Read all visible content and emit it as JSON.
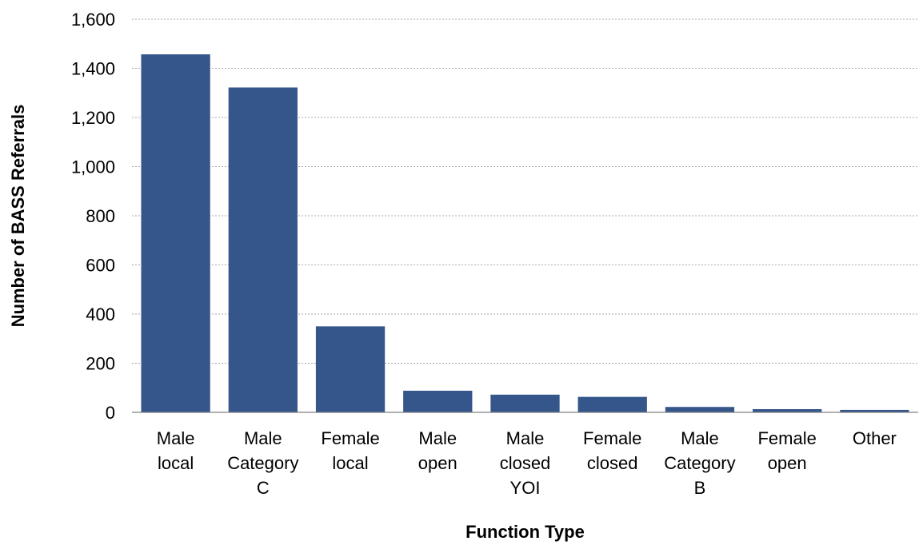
{
  "chart_data": {
    "type": "bar",
    "categories": [
      [
        "Male",
        "local"
      ],
      [
        "Male",
        "Category",
        "C"
      ],
      [
        "Female",
        "local"
      ],
      [
        "Male",
        "open"
      ],
      [
        "Male",
        "closed",
        "YOI"
      ],
      [
        "Female",
        "closed"
      ],
      [
        "Male",
        "Category",
        "B"
      ],
      [
        "Female",
        "open"
      ],
      [
        "Other"
      ]
    ],
    "values": [
      1457,
      1322,
      350,
      88,
      72,
      63,
      22,
      13,
      10
    ],
    "xlabel": "Function Type",
    "ylabel": "Number of BASS Referrals",
    "ylim": [
      0,
      1600
    ],
    "yticks": [
      0,
      200,
      400,
      600,
      800,
      1000,
      1200,
      1400,
      1600
    ],
    "ytick_labels": [
      "0",
      "200",
      "400",
      "600",
      "800",
      "1,000",
      "1,200",
      "1,400",
      "1,600"
    ],
    "grid": true,
    "legend": "none",
    "colors": {
      "bar": "#34568b"
    }
  }
}
